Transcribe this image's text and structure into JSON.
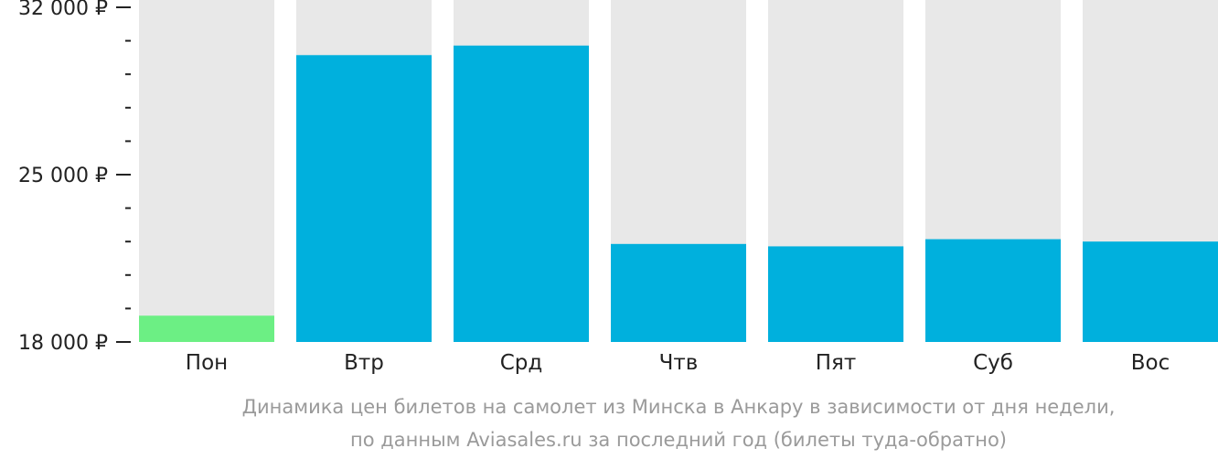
{
  "chart_data": {
    "type": "bar",
    "categories": [
      "Пон",
      "Втр",
      "Срд",
      "Чтв",
      "Пят",
      "Суб",
      "Вос"
    ],
    "values": [
      19100,
      30000,
      30400,
      22100,
      22000,
      22300,
      22200
    ],
    "highlight_index": 0,
    "ylim": [
      18000,
      32000
    ],
    "y_major_ticks": [
      {
        "value": 18000,
        "label": "18 000 ₽"
      },
      {
        "value": 25000,
        "label": "25 000 ₽"
      },
      {
        "value": 32000,
        "label": "32 000 ₽"
      }
    ],
    "y_minor_ticks": [
      19400,
      20800,
      22200,
      23600,
      26400,
      27800,
      29200,
      30600
    ],
    "caption": [
      "Динамика цен билетов на самолет из Минска в Анкару в зависимости от дня недели,",
      "по данным Aviasales.ru за последний год (билеты туда-обратно)"
    ],
    "colors": {
      "bar": "#00b0dd",
      "highlight": "#6cef84",
      "track": "#e8e8e8",
      "axis": "#222222",
      "caption": "#9a9a9a"
    },
    "xlabel": "",
    "ylabel": "",
    "grid": false
  }
}
